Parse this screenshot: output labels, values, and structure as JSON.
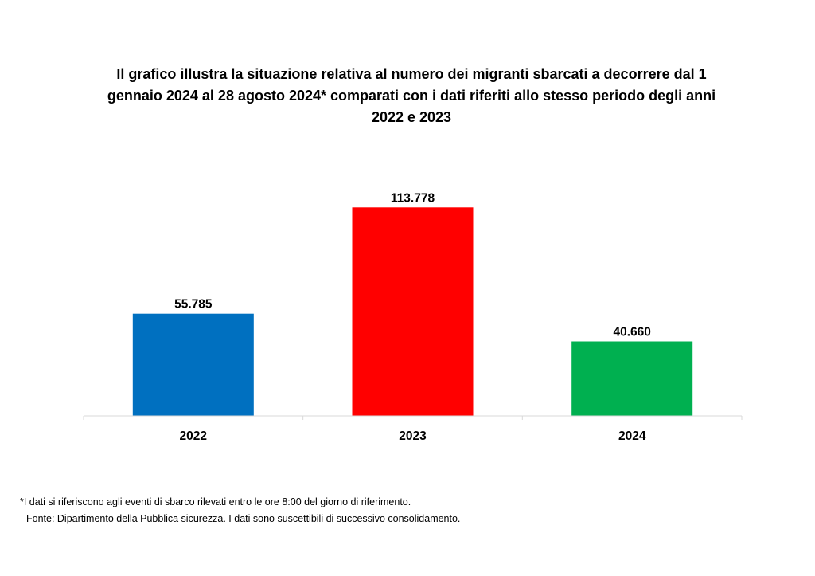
{
  "chart_data": {
    "type": "bar",
    "title_lines": [
      "Il grafico illustra la situazione relativa al numero dei migranti sbarcati a decorrere dal 1",
      "gennaio 2024 al 28 agosto 2024* comparati con i dati riferiti allo stesso periodo degli anni",
      "2022 e 2023"
    ],
    "categories": [
      "2022",
      "2023",
      "2024"
    ],
    "values": [
      55785,
      113778,
      40660
    ],
    "value_labels": [
      "55.785",
      "113.778",
      "40.660"
    ],
    "colors": [
      "#0070C0",
      "#FF0000",
      "#00B050"
    ],
    "ylim": [
      0,
      120000
    ],
    "grid": false,
    "legend": "none"
  },
  "footnotes": {
    "note": "*I dati si riferiscono agli eventi di sbarco rilevati entro le ore 8:00 del giorno di riferimento.",
    "source": "Fonte: Dipartimento della Pubblica sicurezza. I dati sono suscettibili di successivo consolidamento."
  }
}
